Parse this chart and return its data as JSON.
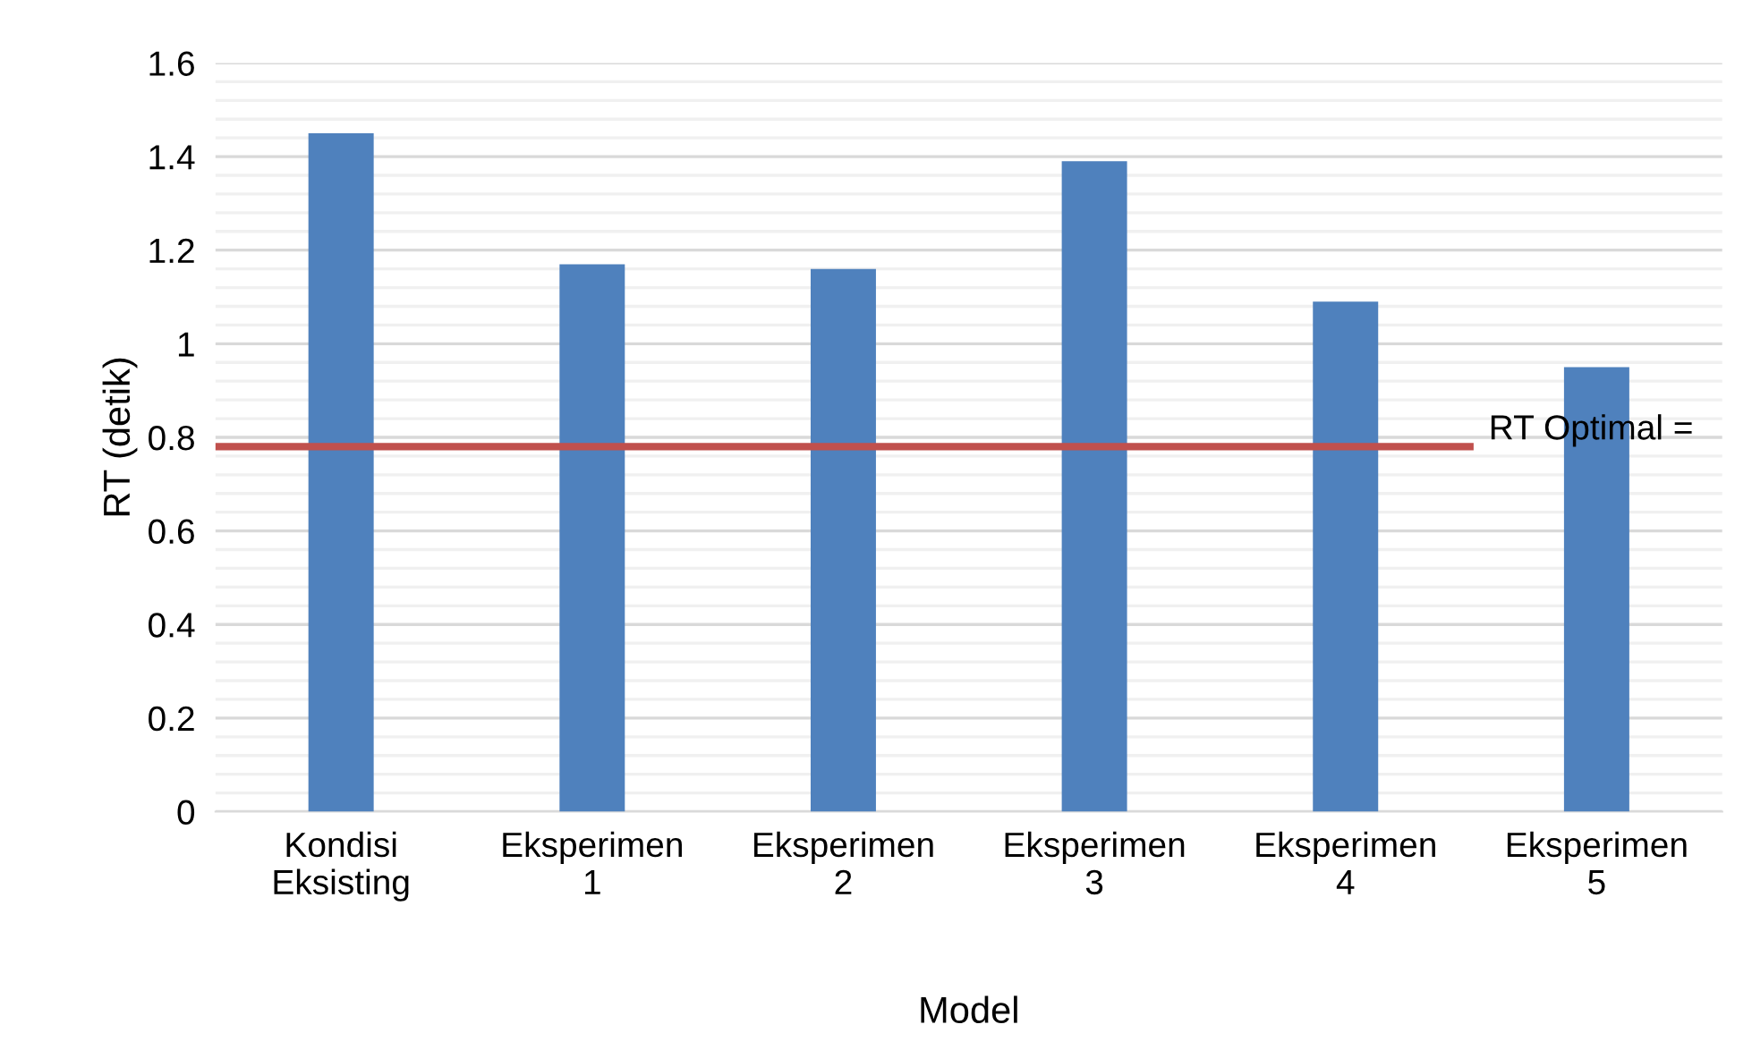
{
  "chart_data": {
    "type": "bar",
    "xlabel": "Model",
    "ylabel": "RT (detik)",
    "categories": [
      "Kondisi\nEksisting",
      "Eksperimen\n1",
      "Eksperimen\n2",
      "Eksperimen\n3",
      "Eksperimen\n4",
      "Eksperimen\n5"
    ],
    "values": [
      1.45,
      1.17,
      1.16,
      1.39,
      1.09,
      0.95
    ],
    "color": "#4f81bd",
    "ylim": [
      0,
      1.6
    ],
    "yticks": [
      0,
      0.2,
      0.4,
      0.6,
      0.8,
      1,
      1.2,
      1.4,
      1.6
    ],
    "grid": "y",
    "ref_lines": [
      {
        "axis": "y",
        "value": 0.78,
        "label": "RT Optimal =",
        "color": "#c0504d",
        "line_style": "solid"
      }
    ]
  }
}
